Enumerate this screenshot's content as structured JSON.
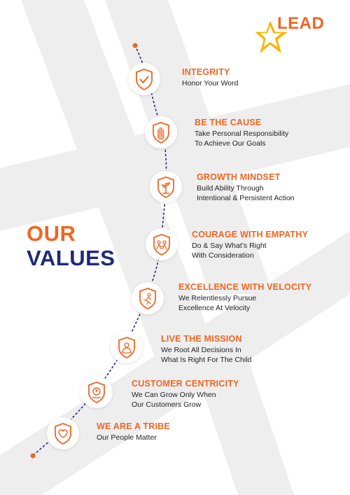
{
  "brand": {
    "logo_text": "LEAD",
    "orange": "#f26522",
    "navy": "#1e2a78",
    "star_yellow": "#f7b500"
  },
  "heading": {
    "line1": "OUR",
    "line2": "VALUES"
  },
  "values": [
    {
      "title": "INTEGRITY",
      "desc": "Honor Your Word",
      "icon": "shield-check-icon"
    },
    {
      "title": "BE THE CAUSE",
      "desc": "Take Personal Responsibility\nTo Achieve Our Goals",
      "icon": "raised-hand-icon"
    },
    {
      "title": "GROWTH MINDSET",
      "desc": "Build Ability Through\nIntentional & Persistent Action",
      "icon": "growing-plant-icon"
    },
    {
      "title": "COURAGE WITH EMPATHY",
      "desc": "Do & Say What’s Right\nWith Consideration",
      "icon": "people-shield-icon"
    },
    {
      "title": "EXCELLENCE WITH VELOCITY",
      "desc": "We Relentlessly Pursue\nExcellence At Velocity",
      "icon": "running-figure-icon"
    },
    {
      "title": "LIVE THE MISSION",
      "desc": "We Root All Decisions In\nWhat Is Right For The Child",
      "icon": "child-icon"
    },
    {
      "title": "CUSTOMER CENTRICITY",
      "desc": "We Can Grow Only When\nOur Customers Grow",
      "icon": "customer-icon"
    },
    {
      "title": "WE ARE A TRIBE",
      "desc": "Our People Matter",
      "icon": "heart-shield-icon"
    }
  ]
}
